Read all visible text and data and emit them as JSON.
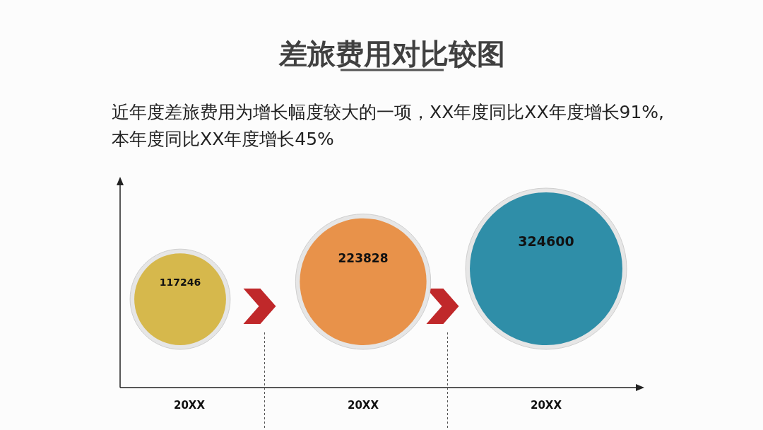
{
  "chart_data": {
    "type": "other",
    "title": "差旅费用对比较图",
    "subtitle": "近年度差旅费用为增长幅度较大的一项，XX年度同比XX年度增长91%,本年度同比XX年度增长45%",
    "categories": [
      "20XX",
      "20XX",
      "20XX"
    ],
    "values": [
      117246,
      223828,
      324600
    ],
    "colors": [
      "#d6b84c",
      "#e8924a",
      "#2f8ea8"
    ],
    "data_labels": true
  }
}
